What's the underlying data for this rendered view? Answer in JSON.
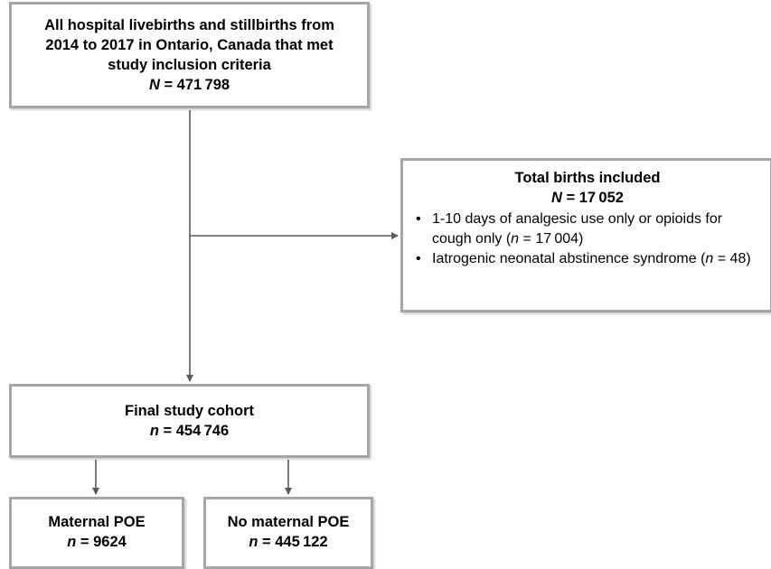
{
  "top_box": {
    "lines": [
      "All hospital livebirths and stillbirths from",
      "2014 to 2017 in Ontario, Canada that met",
      "study inclusion criteria"
    ],
    "count_symbol": "N",
    "count_rest": " = 471 798"
  },
  "exclusion_box": {
    "title": "Total births included",
    "count_symbol": "N",
    "count_rest": " = 17 052",
    "items": [
      {
        "text_before": "1-10 days of analgesic use only or opioids for cough only (",
        "symbol": "n",
        "text_after": " = 17 004)"
      },
      {
        "text_before": "Iatrogenic neonatal abstinence syndrome (",
        "symbol": "n",
        "text_after": " = 48)"
      }
    ]
  },
  "cohort_box": {
    "title": "Final study cohort",
    "count_symbol": "n",
    "count_rest": " = 454 746"
  },
  "poe_box": {
    "title": "Maternal POE",
    "count_symbol": "n",
    "count_rest": " = 9624"
  },
  "no_poe_box": {
    "title": "No maternal POE",
    "count_symbol": "n",
    "count_rest": " = 445 122"
  },
  "colors": {
    "box_border": "#a6a6a6",
    "connector": "#595959",
    "text": "#000000"
  }
}
